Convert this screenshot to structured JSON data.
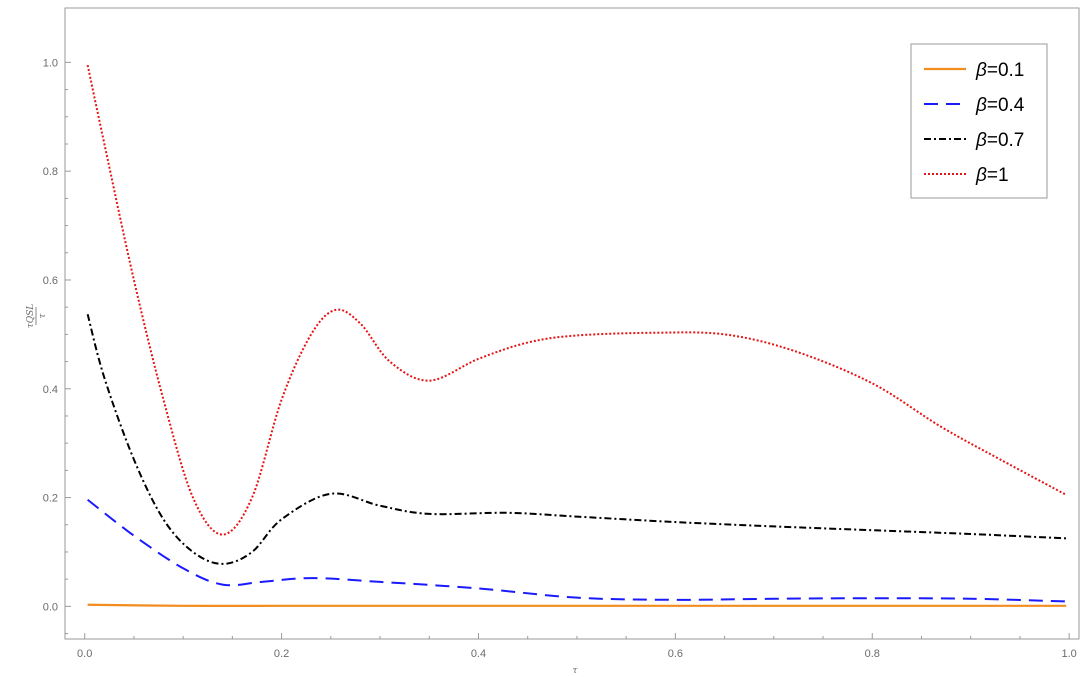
{
  "chart_data": {
    "type": "line",
    "xlabel": "τ",
    "ylabel_numerator": "τQSL",
    "ylabel_denominator": "τ",
    "xlim": [
      -0.02,
      1.01
    ],
    "ylim": [
      -0.06,
      1.1
    ],
    "x_ticks": [
      0.0,
      0.2,
      0.4,
      0.6,
      0.8,
      1.0
    ],
    "x_tick_labels": [
      "0.0",
      "0.2",
      "0.4",
      "0.6",
      "0.8",
      "1.0"
    ],
    "y_ticks": [
      0.0,
      0.2,
      0.4,
      0.6,
      0.8,
      1.0
    ],
    "y_tick_labels": [
      "0.0",
      "0.2",
      "0.4",
      "0.6",
      "0.8",
      "1.0"
    ],
    "legend_position": "top-right",
    "series": [
      {
        "name": "β=0.1",
        "legend_symbol": "β",
        "legend_value": "=0.1",
        "color": "#f28c1e",
        "style": "solid",
        "x": [
          0.003,
          0.1,
          0.2,
          0.4,
          0.6,
          0.8,
          0.997
        ],
        "y": [
          0.003,
          0.001,
          0.001,
          0.001,
          0.001,
          0.001,
          0.001
        ]
      },
      {
        "name": "β=0.4",
        "legend_symbol": "β",
        "legend_value": "=0.4",
        "color": "#1a1aff",
        "style": "dashed",
        "x": [
          0.003,
          0.05,
          0.1,
          0.14,
          0.18,
          0.23,
          0.3,
          0.4,
          0.5,
          0.6,
          0.7,
          0.8,
          0.9,
          0.997
        ],
        "y": [
          0.196,
          0.13,
          0.07,
          0.04,
          0.045,
          0.052,
          0.045,
          0.033,
          0.016,
          0.012,
          0.014,
          0.015,
          0.014,
          0.009
        ]
      },
      {
        "name": "β=0.7",
        "legend_symbol": "β",
        "legend_value": "=0.7",
        "color": "#000000",
        "style": "dashdot",
        "x": [
          0.003,
          0.02,
          0.05,
          0.08,
          0.11,
          0.14,
          0.17,
          0.2,
          0.25,
          0.3,
          0.35,
          0.43,
          0.5,
          0.6,
          0.7,
          0.8,
          0.9,
          0.997
        ],
        "y": [
          0.537,
          0.42,
          0.27,
          0.16,
          0.1,
          0.078,
          0.1,
          0.16,
          0.207,
          0.185,
          0.17,
          0.172,
          0.165,
          0.155,
          0.147,
          0.14,
          0.133,
          0.125
        ]
      },
      {
        "name": "β=1",
        "legend_symbol": "β",
        "legend_value": "=1",
        "color": "#e61414",
        "style": "dotted",
        "x": [
          0.003,
          0.02,
          0.05,
          0.08,
          0.11,
          0.14,
          0.17,
          0.2,
          0.23,
          0.255,
          0.28,
          0.31,
          0.35,
          0.4,
          0.45,
          0.5,
          0.58,
          0.65,
          0.72,
          0.8,
          0.87,
          0.93,
          0.997
        ],
        "y": [
          0.995,
          0.85,
          0.6,
          0.38,
          0.2,
          0.132,
          0.2,
          0.38,
          0.5,
          0.545,
          0.52,
          0.45,
          0.415,
          0.455,
          0.485,
          0.498,
          0.503,
          0.5,
          0.47,
          0.41,
          0.33,
          0.27,
          0.205
        ]
      }
    ]
  }
}
